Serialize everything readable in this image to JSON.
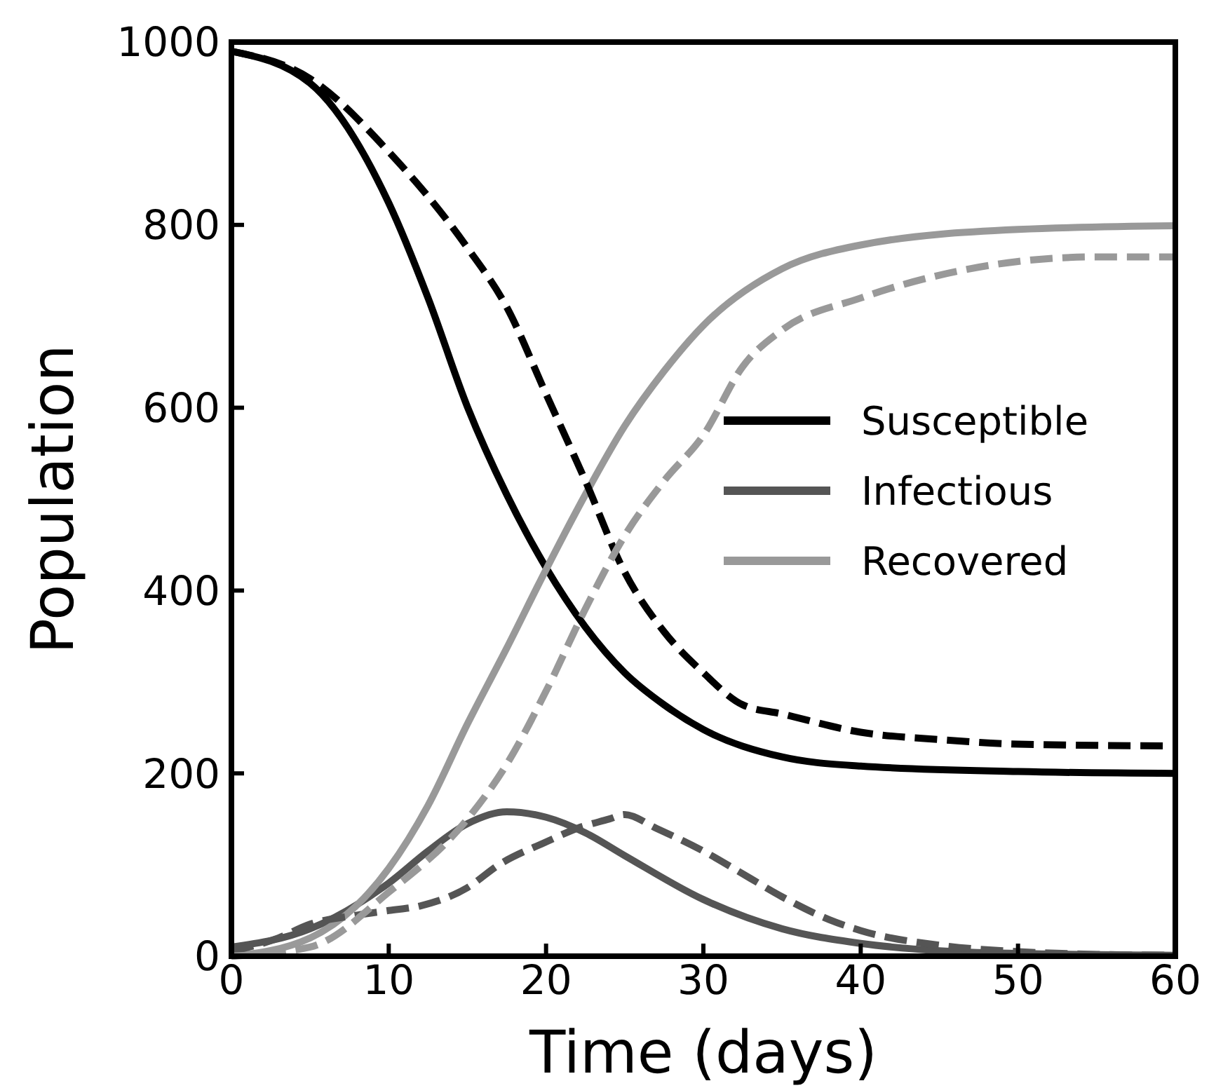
{
  "chart_data": {
    "type": "line",
    "xlabel": "Time (days)",
    "ylabel": "Population",
    "xlim": [
      0,
      60
    ],
    "ylim": [
      0,
      1000
    ],
    "xticks": [
      0,
      10,
      20,
      30,
      40,
      50,
      60
    ],
    "yticks": [
      0,
      200,
      400,
      600,
      800,
      1000
    ],
    "grid": false,
    "legend": "right",
    "marker": "none",
    "series": [
      {
        "name": "Susceptible",
        "color": "#000000",
        "line_style": "solid",
        "x": [
          0,
          5,
          10,
          12.5,
          15,
          17.5,
          20,
          22.5,
          25,
          27.5,
          30,
          35,
          40,
          50,
          60
        ],
        "values": [
          990,
          955,
          824,
          720,
          601,
          505,
          425,
          360,
          310,
          275,
          248,
          218,
          208,
          202,
          200
        ]
      },
      {
        "name": "Infectious",
        "color": "#555555",
        "line_style": "solid",
        "x": [
          0,
          5,
          10,
          12.5,
          15,
          17.5,
          20,
          22.5,
          25,
          30,
          35,
          40,
          45,
          50,
          60
        ],
        "values": [
          10,
          30,
          80,
          115,
          145,
          158,
          152,
          135,
          110,
          62,
          30,
          14,
          6,
          3,
          1
        ]
      },
      {
        "name": "Recovered",
        "color": "#999999",
        "line_style": "solid",
        "x": [
          0,
          5,
          10,
          12.5,
          15,
          17.5,
          20,
          22.5,
          25,
          27.5,
          30,
          35,
          40,
          50,
          60
        ],
        "values": [
          0,
          20,
          96,
          165,
          254,
          337,
          423,
          505,
          580,
          640,
          690,
          752,
          778,
          795,
          799
        ]
      },
      {
        "color": "#000000",
        "line_style": "dashed",
        "x": [
          0,
          5,
          10,
          15,
          17.5,
          20,
          22.5,
          25,
          27.5,
          30,
          32.5,
          35,
          40,
          45,
          50,
          60
        ],
        "values": [
          990,
          960,
          880,
          775,
          710,
          615,
          520,
          420,
          355,
          310,
          275,
          265,
          245,
          237,
          232,
          230
        ]
      },
      {
        "color": "#555555",
        "line_style": "dashed",
        "x": [
          0,
          3,
          5,
          8,
          10,
          12,
          15,
          17,
          20,
          22,
          24,
          25,
          27,
          30,
          33,
          35,
          38,
          40,
          45,
          50,
          55,
          60
        ],
        "values": [
          5,
          20,
          35,
          45,
          50,
          55,
          75,
          100,
          125,
          140,
          150,
          155,
          140,
          115,
          85,
          65,
          40,
          28,
          12,
          5,
          2,
          1
        ]
      },
      {
        "color": "#999999",
        "line_style": "dashed",
        "x": [
          0,
          5,
          10,
          15,
          17.5,
          20,
          22.5,
          25,
          27.5,
          30,
          32.5,
          35,
          40,
          45,
          50,
          55,
          60
        ],
        "values": [
          0,
          10,
          70,
          150,
          210,
          290,
          380,
          460,
          520,
          570,
          645,
          685,
          720,
          745,
          760,
          765,
          765
        ]
      }
    ]
  }
}
